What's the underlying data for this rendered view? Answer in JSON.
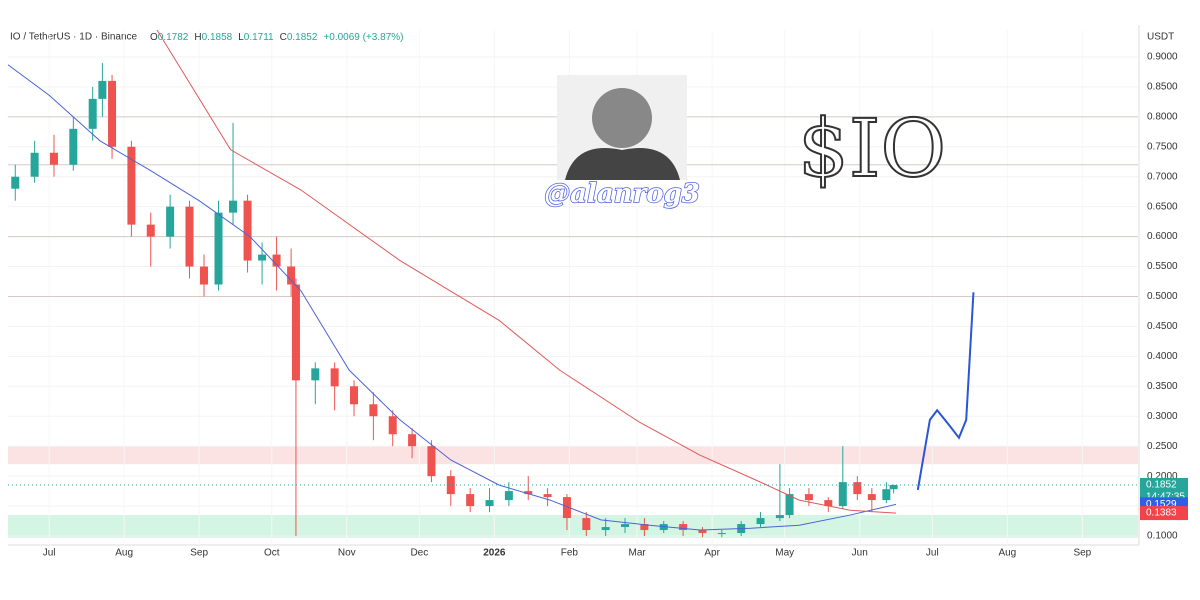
{
  "chart_data": {
    "type": "candlestick",
    "title": "IO / TetherUS · 1D · Binance",
    "ohlc_letters": [
      "O",
      "H",
      "L",
      "C"
    ],
    "change": "+0.0069 (+3.87%)",
    "unit": "USDT",
    "countdown": "14:47:35",
    "annotations": [
      "$IO",
      "@alanrog3"
    ],
    "up_color": "#26a69a",
    "down_color": "#ef5350",
    "x": [
      -14,
      -6,
      2,
      10,
      18,
      22,
      26,
      34,
      42,
      50,
      58,
      64,
      70,
      76,
      82,
      88,
      94,
      100,
      102,
      110,
      118,
      126,
      134,
      142,
      150,
      158,
      166,
      174,
      182,
      190,
      198,
      206,
      214,
      222,
      230,
      238,
      246,
      254,
      262,
      270,
      278,
      286,
      294,
      302,
      306,
      314,
      322,
      328,
      334,
      340,
      346,
      349
    ],
    "open": [
      0.68,
      0.7,
      0.74,
      0.72,
      0.78,
      0.83,
      0.86,
      0.75,
      0.62,
      0.6,
      0.65,
      0.55,
      0.52,
      0.64,
      0.66,
      0.56,
      0.57,
      0.55,
      0.52,
      0.36,
      0.38,
      0.35,
      0.32,
      0.3,
      0.27,
      0.25,
      0.2,
      0.17,
      0.15,
      0.16,
      0.175,
      0.17,
      0.165,
      0.13,
      0.11,
      0.115,
      0.12,
      0.11,
      0.12,
      0.11,
      0.105,
      0.105,
      0.12,
      0.13,
      0.135,
      0.17,
      0.16,
      0.15,
      0.19,
      0.17,
      0.16,
      0.1782
    ],
    "high": [
      0.72,
      0.76,
      0.77,
      0.8,
      0.85,
      0.89,
      0.87,
      0.76,
      0.64,
      0.67,
      0.66,
      0.57,
      0.66,
      0.79,
      0.67,
      0.59,
      0.6,
      0.58,
      0.53,
      0.39,
      0.39,
      0.36,
      0.34,
      0.31,
      0.28,
      0.26,
      0.21,
      0.18,
      0.18,
      0.19,
      0.2,
      0.18,
      0.17,
      0.14,
      0.13,
      0.13,
      0.13,
      0.125,
      0.125,
      0.115,
      0.11,
      0.125,
      0.14,
      0.22,
      0.18,
      0.18,
      0.165,
      0.25,
      0.2,
      0.18,
      0.19,
      0.1858
    ],
    "low": [
      0.66,
      0.69,
      0.7,
      0.71,
      0.76,
      0.8,
      0.73,
      0.6,
      0.55,
      0.58,
      0.53,
      0.5,
      0.51,
      0.62,
      0.54,
      0.52,
      0.51,
      0.5,
      0.1,
      0.32,
      0.31,
      0.3,
      0.26,
      0.25,
      0.23,
      0.19,
      0.15,
      0.14,
      0.14,
      0.15,
      0.16,
      0.15,
      0.11,
      0.1,
      0.1,
      0.105,
      0.1,
      0.105,
      0.1,
      0.098,
      0.098,
      0.1,
      0.115,
      0.125,
      0.13,
      0.15,
      0.14,
      0.145,
      0.16,
      0.14,
      0.155,
      0.1711
    ],
    "close": [
      0.7,
      0.74,
      0.72,
      0.78,
      0.83,
      0.86,
      0.75,
      0.62,
      0.6,
      0.65,
      0.55,
      0.52,
      0.64,
      0.66,
      0.56,
      0.57,
      0.55,
      0.52,
      0.36,
      0.38,
      0.35,
      0.32,
      0.3,
      0.27,
      0.25,
      0.2,
      0.17,
      0.15,
      0.16,
      0.175,
      0.17,
      0.165,
      0.13,
      0.11,
      0.115,
      0.12,
      0.11,
      0.12,
      0.11,
      0.105,
      0.105,
      0.12,
      0.13,
      0.135,
      0.17,
      0.16,
      0.15,
      0.19,
      0.17,
      0.16,
      0.1782,
      0.1852
    ],
    "series": [
      {
        "color": "#4a63d8",
        "x": [
          -17,
          0,
          21,
          42,
          62,
          83,
          104,
          124,
          145,
          166,
          186,
          207,
          228,
          248,
          269,
          290,
          310,
          331,
          350
        ],
        "values": [
          0.887,
          0.836,
          0.76,
          0.71,
          0.66,
          0.6,
          0.51,
          0.377,
          0.294,
          0.227,
          0.185,
          0.16,
          0.127,
          0.118,
          0.11,
          0.113,
          0.118,
          0.135,
          0.1529
        ]
      },
      {
        "color": "#e05a5a",
        "x": [
          42,
          75,
          104,
          145,
          186,
          211,
          244,
          269,
          294,
          310,
          331,
          350
        ],
        "values": [
          0.962,
          0.745,
          0.678,
          0.56,
          0.46,
          0.377,
          0.29,
          0.235,
          0.19,
          0.16,
          0.143,
          0.1383
        ]
      },
      {
        "color": "#2a55d4",
        "x": [
          359,
          364,
          367,
          372,
          376,
          379,
          382
        ],
        "values": [
          0.177,
          0.294,
          0.31,
          0.285,
          0.264,
          0.294,
          0.507
        ]
      }
    ],
    "levels": [
      0.8,
      0.72,
      0.6,
      0.5
    ],
    "zones": [
      {
        "low": 0.22,
        "high": 0.25,
        "color": "#fadcdc"
      },
      {
        "low": 0.097,
        "high": 0.135,
        "color": "#c9f3dc"
      }
    ],
    "ylim": [
      0.085,
      0.945
    ],
    "yticks": [
      {
        "value": 0.1,
        "label": "0.1000"
      },
      {
        "value": 0.15,
        "label": "0.1500"
      },
      {
        "value": 0.2,
        "label": "0.2000"
      },
      {
        "value": 0.25,
        "label": "0.2500"
      },
      {
        "value": 0.3,
        "label": "0.3000"
      },
      {
        "value": 0.35,
        "label": "0.3500"
      },
      {
        "value": 0.4,
        "label": "0.4000"
      },
      {
        "value": 0.45,
        "label": "0.4500"
      },
      {
        "value": 0.5,
        "label": "0.5000"
      },
      {
        "value": 0.55,
        "label": "0.5500"
      },
      {
        "value": 0.6,
        "label": "0.6000"
      },
      {
        "value": 0.65,
        "label": "0.6500"
      },
      {
        "value": 0.7,
        "label": "0.7000"
      },
      {
        "value": 0.75,
        "label": "0.7500"
      },
      {
        "value": 0.8,
        "label": "0.8000"
      },
      {
        "value": 0.85,
        "label": "0.8500"
      },
      {
        "value": 0.9,
        "label": "0.9000"
      }
    ],
    "xlim": [
      -17,
      450
    ],
    "xticks": [
      {
        "value": 0,
        "label": "Jul"
      },
      {
        "value": 31,
        "label": "Aug"
      },
      {
        "value": 62,
        "label": "Sep"
      },
      {
        "value": 92,
        "label": "Oct"
      },
      {
        "value": 123,
        "label": "Nov"
      },
      {
        "value": 153,
        "label": "Dec"
      },
      {
        "value": 184,
        "label": "2026"
      },
      {
        "value": 215,
        "label": "Feb"
      },
      {
        "value": 243,
        "label": "Mar"
      },
      {
        "value": 274,
        "label": "Apr"
      },
      {
        "value": 304,
        "label": "May"
      },
      {
        "value": 335,
        "label": "Jun"
      },
      {
        "value": 365,
        "label": "Jul"
      },
      {
        "value": 396,
        "label": "Aug"
      },
      {
        "value": 427,
        "label": "Sep"
      }
    ]
  }
}
